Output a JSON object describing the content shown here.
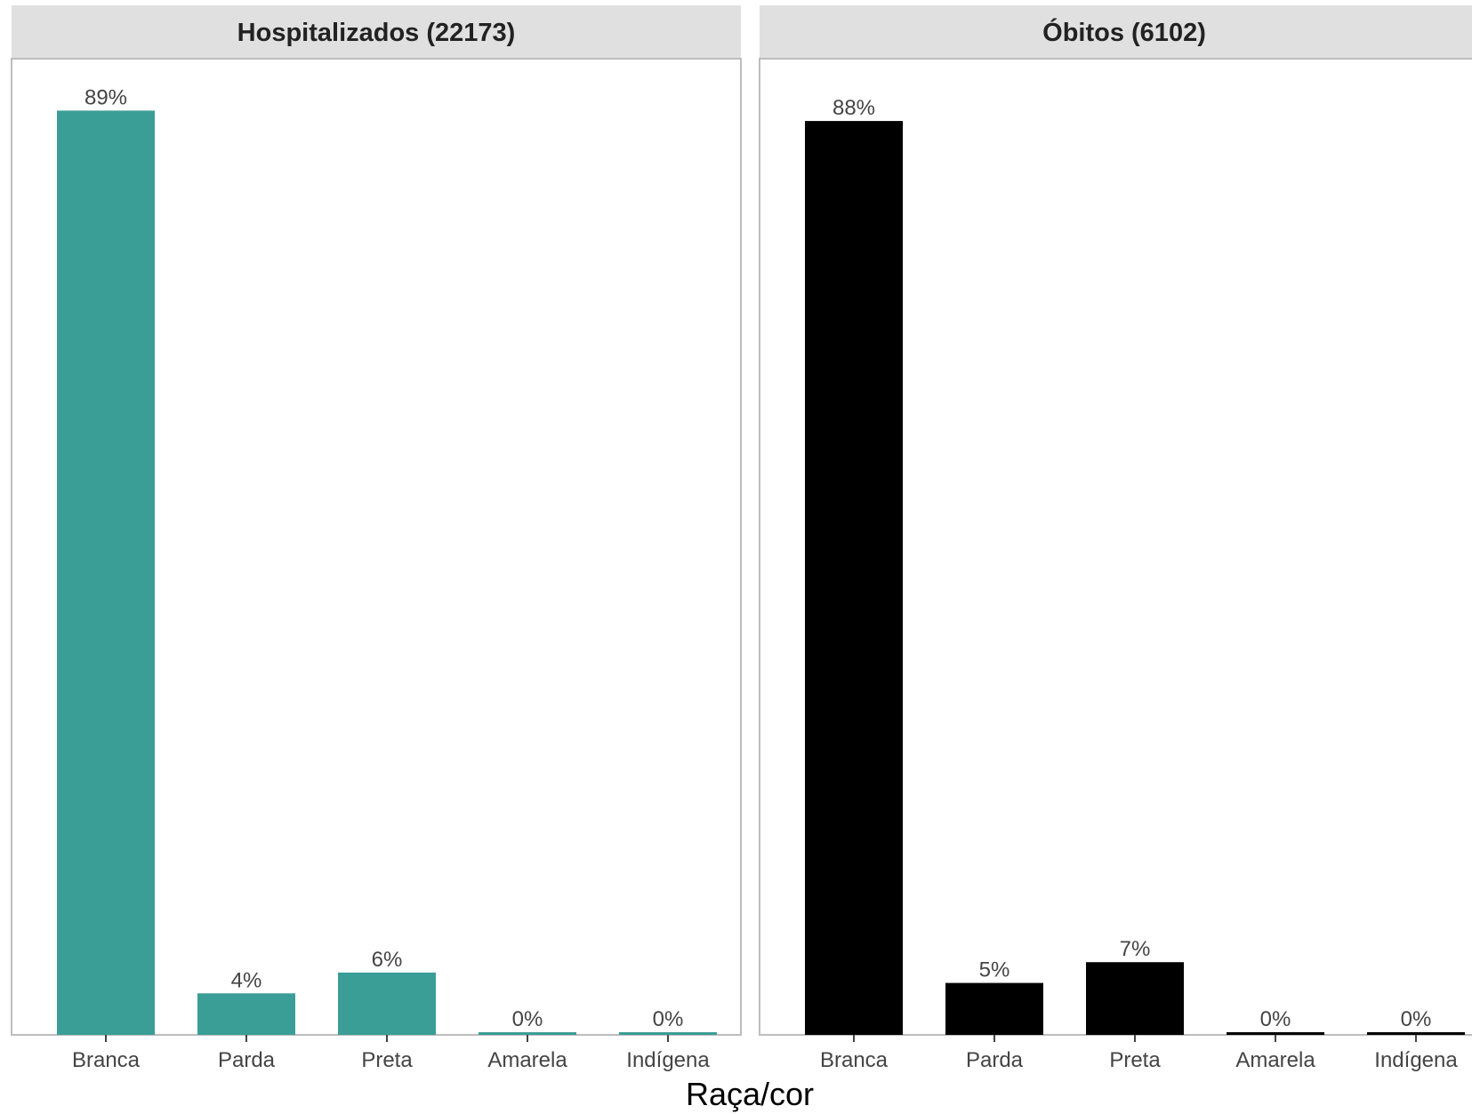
{
  "chart_data": {
    "type": "bar",
    "xlabel": "Raça/cor",
    "categories": [
      "Branca",
      "Parda",
      "Preta",
      "Amarela",
      "Indígena"
    ],
    "panels": [
      {
        "title": "Hospitalizados (22173)",
        "color": "#3a9e96",
        "values": [
          89,
          4,
          6,
          0,
          0
        ],
        "labels": [
          "89%",
          "4%",
          "6%",
          "0%",
          "0%"
        ]
      },
      {
        "title": "Óbitos (6102)",
        "color": "#000000",
        "values": [
          88,
          5,
          7,
          0,
          0
        ],
        "labels": [
          "88%",
          "5%",
          "7%",
          "0%",
          "0%"
        ]
      }
    ],
    "ylim": [
      0,
      94
    ],
    "grid": false,
    "legend": "none"
  }
}
